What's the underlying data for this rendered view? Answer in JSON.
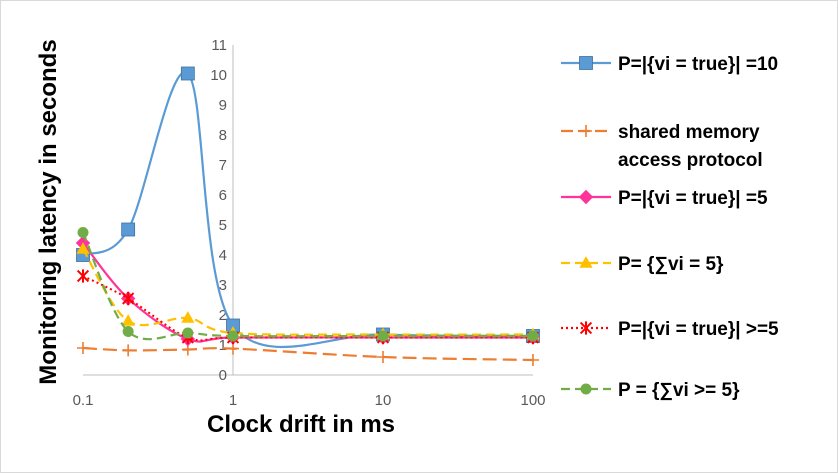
{
  "chart_data": {
    "type": "line",
    "title": "",
    "xlabel": "Clock drift in ms",
    "ylabel": "Monitoring latency in seconds",
    "x_scale": "log",
    "x_ticks": [
      "0.1",
      "1",
      "10",
      "100"
    ],
    "x_tick_values": [
      0.1,
      1,
      10,
      100
    ],
    "y_ticks": [
      "0",
      "1",
      "2",
      "3",
      "4",
      "5",
      "6",
      "7",
      "8",
      "9",
      "10",
      "11"
    ],
    "xlim": [
      0.1,
      100
    ],
    "ylim": [
      0,
      11
    ],
    "grid": false,
    "legend_position": "right",
    "series": [
      {
        "name": "P=|{vi = true}| =10",
        "label_lines": [
          "P=|{vi = true}| =10"
        ],
        "color": "#5b9bd5",
        "dash": "solid",
        "marker": "square",
        "x": [
          0.1,
          0.2,
          0.5,
          1,
          10,
          100
        ],
        "y": [
          4.0,
          4.85,
          10.05,
          1.65,
          1.35,
          1.3
        ]
      },
      {
        "name": "shared memory access protocol",
        "label_lines": [
          "shared memory",
          "access protocol"
        ],
        "color": "#ed7d31",
        "dash": "long-dash",
        "marker": "plus",
        "x": [
          0.1,
          0.2,
          0.5,
          1,
          10,
          100
        ],
        "y": [
          0.9,
          0.82,
          0.85,
          0.88,
          0.6,
          0.5
        ]
      },
      {
        "name": "P=|{vi = true}| =5",
        "label_lines": [
          "P=|{vi = true}| =5"
        ],
        "color": "#ff3399",
        "dash": "solid",
        "marker": "diamond",
        "x": [
          0.1,
          0.2,
          0.5,
          1,
          10,
          100
        ],
        "y": [
          4.4,
          2.55,
          1.2,
          1.25,
          1.25,
          1.25
        ]
      },
      {
        "name": "P= {∑vi = 5}",
        "label_lines": [
          "P= {∑vi = 5}"
        ],
        "color": "#ffc000",
        "dash": "dash",
        "marker": "triangle",
        "x": [
          0.1,
          0.2,
          0.5,
          1,
          10,
          100
        ],
        "y": [
          4.2,
          1.8,
          1.9,
          1.4,
          1.35,
          1.35
        ]
      },
      {
        "name": "P=|{vi = true}| >=5",
        "label_lines": [
          "P=|{vi = true}| >=5"
        ],
        "color": "#ff0000",
        "dash": "dot",
        "marker": "star",
        "x": [
          0.1,
          0.2,
          0.5,
          1,
          10,
          100
        ],
        "y": [
          3.3,
          2.55,
          1.25,
          1.25,
          1.25,
          1.25
        ]
      },
      {
        "name": "P = {∑vi >= 5}",
        "label_lines": [
          "P = {∑vi >= 5}"
        ],
        "color": "#70ad47",
        "dash": "dash",
        "marker": "circle",
        "x": [
          0.1,
          0.2,
          0.5,
          1,
          10,
          100
        ],
        "y": [
          4.75,
          1.45,
          1.4,
          1.3,
          1.3,
          1.3
        ]
      }
    ]
  }
}
